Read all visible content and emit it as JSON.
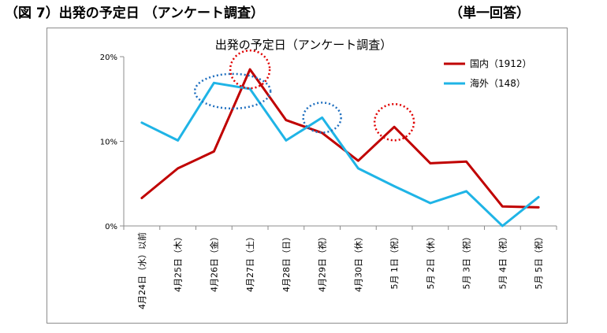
{
  "figure": {
    "title": "（図 7）出発の予定日 （アンケート調査）",
    "note": "（単一回答）"
  },
  "chart_data": {
    "type": "line",
    "title": "出発の予定日（アンケート調査）",
    "xlabel": "",
    "ylabel": "",
    "ylim": [
      0,
      20
    ],
    "yticks": [
      "0%",
      "10%",
      "20%"
    ],
    "grid": false,
    "legend_position": "top-right",
    "categories": [
      "4月24日（水）以前",
      "4月25日（木）",
      "4月26日（金）",
      "4月27日（土）",
      "4月28日（日）",
      "4月29日（祝）",
      "4月30日（休）",
      "5月 1日（祝）",
      "5月 2日（休）",
      "5月 3日（祝）",
      "5月 4日（祝）",
      "5月 5日（祝）"
    ],
    "series": [
      {
        "name": "国内（1912）",
        "color": "#c00000",
        "values": [
          3.3,
          6.8,
          8.8,
          18.5,
          12.5,
          11.0,
          7.7,
          11.7,
          7.4,
          7.6,
          2.3,
          2.2
        ]
      },
      {
        "name": "海外（148）",
        "color": "#1fb4e6",
        "values": [
          12.2,
          10.1,
          16.9,
          16.2,
          10.1,
          12.8,
          6.8,
          4.7,
          2.7,
          4.1,
          0.0,
          3.4
        ]
      }
    ],
    "highlights": [
      {
        "category_index": 3,
        "series": 1,
        "color": "#1f6fbf"
      },
      {
        "category_index": 3,
        "series": 0,
        "color": "#e00000"
      },
      {
        "category_index": 5,
        "series": 1,
        "color": "#1f6fbf"
      },
      {
        "category_index": 7,
        "series": 0,
        "color": "#e00000"
      }
    ]
  }
}
